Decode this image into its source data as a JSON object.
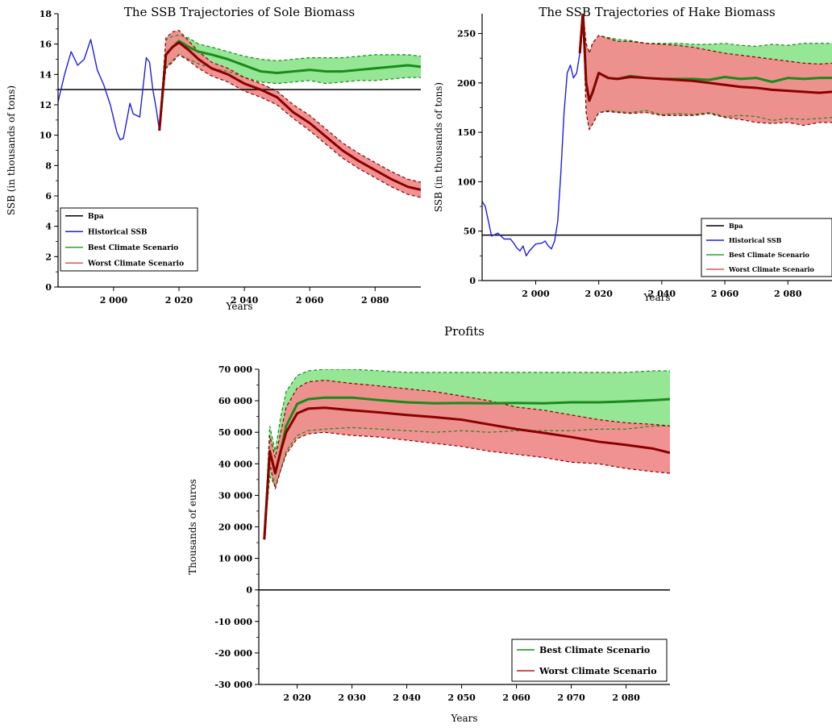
{
  "chart_data": [
    {
      "id": "sole",
      "type": "line",
      "title": "The SSB Trajectories of Sole Biomass",
      "xlabel": "Years",
      "ylabel": "SSB (in thousands of tons)",
      "xlim": [
        1983,
        2094
      ],
      "ylim": [
        0,
        18
      ],
      "xticks": [
        2000,
        2020,
        2040,
        2060,
        2080
      ],
      "xtick_labels": [
        "2 000",
        "2 020",
        "2 040",
        "2 060",
        "2 080"
      ],
      "yticks": [
        0,
        2,
        4,
        6,
        8,
        10,
        12,
        14,
        16,
        18
      ],
      "ytick_labels": [
        "0",
        "2",
        "4",
        "6",
        "8",
        "10",
        "12",
        "14",
        "16",
        "18"
      ],
      "legend": [
        "Bpa",
        "Historical SSB",
        "Best Climate Scenario",
        "Worst Climate Scenario"
      ],
      "legend_position": "bottom-left",
      "bpa": 13,
      "series": [
        {
          "name": "Historical SSB",
          "color": "#1f1fe6",
          "width": 1.4,
          "x": [
            1983,
            1985,
            1987,
            1989,
            1991,
            1993,
            1995,
            1997,
            1999,
            2001,
            2002,
            2003,
            2005,
            2006,
            2008,
            2010,
            2011,
            2012,
            2013,
            2014
          ],
          "y": [
            12.2,
            14.0,
            15.5,
            14.6,
            15.0,
            16.3,
            14.3,
            13.3,
            12.0,
            10.2,
            9.7,
            9.8,
            12.1,
            11.4,
            11.2,
            15.1,
            14.8,
            13.0,
            11.8,
            10.3
          ]
        },
        {
          "name": "Best Climate Scenario",
          "color": "#1a8a1a",
          "width": 3,
          "x": [
            2014,
            2016,
            2018,
            2020,
            2023,
            2026,
            2030,
            2035,
            2040,
            2045,
            2050,
            2055,
            2060,
            2065,
            2070,
            2075,
            2080,
            2085,
            2090,
            2094
          ],
          "y": [
            10.3,
            15.3,
            15.8,
            16.2,
            15.8,
            15.5,
            15.3,
            15.0,
            14.6,
            14.2,
            14.1,
            14.2,
            14.3,
            14.2,
            14.2,
            14.3,
            14.4,
            14.5,
            14.6,
            14.5
          ],
          "upper": [
            10.3,
            16.3,
            16.5,
            16.6,
            16.4,
            16.0,
            15.8,
            15.5,
            15.2,
            15.0,
            14.9,
            15.0,
            15.1,
            15.1,
            15.1,
            15.2,
            15.3,
            15.3,
            15.3,
            15.2
          ],
          "lower": [
            10.3,
            14.5,
            14.9,
            15.3,
            15.0,
            14.7,
            14.4,
            14.2,
            13.8,
            13.5,
            13.4,
            13.5,
            13.6,
            13.4,
            13.5,
            13.6,
            13.6,
            13.7,
            13.8,
            13.8
          ],
          "band": "#8fe58f"
        },
        {
          "name": "Worst Climate Scenario",
          "color": "#8b0000",
          "width": 3,
          "x": [
            2014,
            2016,
            2018,
            2020,
            2023,
            2026,
            2030,
            2035,
            2040,
            2045,
            2050,
            2055,
            2060,
            2065,
            2070,
            2075,
            2080,
            2085,
            2090,
            2094
          ],
          "y": [
            10.3,
            15.3,
            15.8,
            16.1,
            15.6,
            15.0,
            14.4,
            14.0,
            13.4,
            13.0,
            12.5,
            11.5,
            10.8,
            9.9,
            9.0,
            8.3,
            7.7,
            7.1,
            6.6,
            6.4
          ],
          "upper": [
            10.3,
            16.4,
            16.8,
            16.9,
            16.2,
            15.5,
            14.8,
            14.4,
            13.8,
            13.4,
            12.9,
            12.0,
            11.3,
            10.4,
            9.5,
            8.8,
            8.2,
            7.6,
            7.1,
            6.9
          ],
          "lower": [
            10.3,
            14.4,
            14.8,
            15.3,
            14.9,
            14.4,
            13.9,
            13.5,
            12.9,
            12.5,
            12.0,
            11.1,
            10.3,
            9.4,
            8.5,
            7.8,
            7.2,
            6.6,
            6.1,
            5.9
          ],
          "band": "#f08c8c"
        }
      ]
    },
    {
      "id": "hake",
      "type": "line",
      "title": "The SSB Trajectories of Hake Biomass",
      "xlabel": "Years",
      "ylabel": "SSB (in thousands of tons)",
      "xlim": [
        1983,
        2094
      ],
      "ylim": [
        0,
        270
      ],
      "xticks": [
        2000,
        2020,
        2040,
        2060,
        2080
      ],
      "xtick_labels": [
        "2 000",
        "2 020",
        "2 040",
        "2 060",
        "2 080"
      ],
      "yticks": [
        0,
        50,
        100,
        150,
        200,
        250
      ],
      "ytick_labels": [
        "0",
        "50",
        "100",
        "150",
        "200",
        "250"
      ],
      "legend": [
        "Bpa",
        "Historical SSB",
        "Best Climate Scenario",
        "Worst Climate Scenario"
      ],
      "legend_position": "bottom-right",
      "bpa": 46,
      "series": [
        {
          "name": "Historical SSB",
          "color": "#1f1fe6",
          "width": 1.4,
          "x": [
            1983,
            1984,
            1985,
            1986,
            1988,
            1990,
            1992,
            1993,
            1994,
            1995,
            1996,
            1997,
            1998,
            2000,
            2002,
            2003,
            2004,
            2005,
            2006,
            2007,
            2008,
            2009,
            2010,
            2011,
            2012,
            2013,
            2014
          ],
          "y": [
            80,
            75,
            60,
            45,
            48,
            42,
            42,
            38,
            33,
            30,
            35,
            25,
            30,
            37,
            38,
            40,
            35,
            32,
            40,
            60,
            110,
            170,
            210,
            218,
            205,
            210,
            230
          ]
        },
        {
          "name": "Best Climate Scenario",
          "color": "#1a8a1a",
          "width": 3,
          "x": [
            2014,
            2015,
            2016,
            2017,
            2018,
            2020,
            2023,
            2026,
            2030,
            2035,
            2040,
            2045,
            2050,
            2055,
            2060,
            2065,
            2070,
            2075,
            2080,
            2085,
            2090,
            2094
          ],
          "y": [
            230,
            272,
            200,
            182,
            190,
            210,
            205,
            204,
            207,
            205,
            204,
            204,
            204,
            203,
            206,
            204,
            205,
            201,
            205,
            204,
            205,
            205
          ],
          "upper": [
            230,
            272,
            240,
            230,
            240,
            248,
            246,
            244,
            243,
            240,
            240,
            240,
            239,
            239,
            240,
            238,
            237,
            239,
            238,
            240,
            240,
            240
          ],
          "lower": [
            230,
            272,
            170,
            153,
            158,
            170,
            172,
            171,
            170,
            172,
            168,
            169,
            168,
            170,
            166,
            167,
            166,
            162,
            164,
            163,
            164,
            165
          ],
          "band": "#8fe58f"
        },
        {
          "name": "Worst Climate Scenario",
          "color": "#8b0000",
          "width": 3,
          "x": [
            2014,
            2015,
            2016,
            2017,
            2018,
            2020,
            2023,
            2026,
            2030,
            2035,
            2040,
            2045,
            2050,
            2055,
            2060,
            2065,
            2070,
            2075,
            2080,
            2085,
            2090,
            2094
          ],
          "y": [
            230,
            272,
            200,
            182,
            190,
            210,
            205,
            204,
            206,
            205,
            204,
            203,
            202,
            200,
            198,
            196,
            195,
            193,
            192,
            191,
            190,
            191
          ],
          "upper": [
            230,
            272,
            240,
            230,
            240,
            248,
            245,
            242,
            242,
            240,
            239,
            238,
            236,
            233,
            230,
            228,
            226,
            224,
            222,
            220,
            219,
            220
          ],
          "lower": [
            230,
            272,
            170,
            153,
            158,
            170,
            171,
            170,
            169,
            170,
            167,
            167,
            167,
            169,
            165,
            163,
            160,
            159,
            160,
            157,
            160,
            160
          ],
          "band": "#f08c8c"
        }
      ]
    },
    {
      "id": "profits",
      "type": "line",
      "title": "Profits",
      "xlabel": "Years",
      "ylabel": "Thousands of euros",
      "xlim": [
        2013,
        2088
      ],
      "ylim": [
        -30000,
        70000
      ],
      "xticks": [
        2020,
        2030,
        2040,
        2050,
        2060,
        2070,
        2080
      ],
      "xtick_labels": [
        "2 020",
        "2 030",
        "2 040",
        "2 050",
        "2 060",
        "2 070",
        "2 080"
      ],
      "yticks": [
        -30000,
        -20000,
        -10000,
        0,
        10000,
        20000,
        30000,
        40000,
        50000,
        60000,
        70000
      ],
      "ytick_labels": [
        "-30 000",
        "-20 000",
        "-10 000",
        "0",
        "10 000",
        "20 000",
        "30 000",
        "40 000",
        "50 000",
        "60 000",
        "70 000"
      ],
      "legend": [
        "Best Climate Scenario",
        "Worst Climate Scenario"
      ],
      "legend_position": "bottom-right",
      "zero_line": 0,
      "series": [
        {
          "name": "Best Climate Scenario",
          "color": "#1a8a1a",
          "width": 3,
          "x": [
            2014,
            2015,
            2016,
            2017,
            2018,
            2020,
            2022,
            2025,
            2030,
            2035,
            2040,
            2045,
            2050,
            2055,
            2060,
            2065,
            2070,
            2075,
            2080,
            2085,
            2088
          ],
          "y": [
            16000,
            44000,
            37000,
            44000,
            52000,
            59000,
            60500,
            61000,
            61000,
            60200,
            59500,
            59200,
            59300,
            59200,
            59300,
            59200,
            59500,
            59500,
            59800,
            60200,
            60500
          ],
          "upper": [
            16000,
            52000,
            44000,
            55000,
            63000,
            68000,
            69500,
            70000,
            70000,
            69500,
            69000,
            69000,
            69000,
            69000,
            69000,
            69000,
            69000,
            69000,
            69000,
            69500,
            69500
          ],
          "lower": [
            16000,
            36000,
            33000,
            38000,
            44000,
            49000,
            50500,
            51000,
            51500,
            51000,
            50500,
            50000,
            50500,
            50000,
            50500,
            50500,
            50500,
            51000,
            51000,
            52000,
            52000
          ],
          "band": "#8fe58f"
        },
        {
          "name": "Worst Climate Scenario",
          "color": "#8b0000",
          "width": 3,
          "x": [
            2014,
            2015,
            2016,
            2017,
            2018,
            2020,
            2022,
            2025,
            2030,
            2035,
            2040,
            2045,
            2050,
            2055,
            2060,
            2065,
            2070,
            2075,
            2080,
            2085,
            2088
          ],
          "y": [
            16000,
            44000,
            37000,
            44000,
            50000,
            56000,
            57500,
            57800,
            57000,
            56300,
            55500,
            54800,
            54000,
            52500,
            51000,
            49800,
            48500,
            47000,
            46000,
            44800,
            43500
          ],
          "upper": [
            16000,
            49000,
            42000,
            50000,
            58000,
            64000,
            66000,
            66500,
            65500,
            64700,
            63800,
            62900,
            61500,
            60000,
            58000,
            57000,
            55500,
            54000,
            53000,
            52500,
            52000
          ],
          "lower": [
            16000,
            40000,
            32000,
            38000,
            43000,
            48000,
            49500,
            50000,
            49000,
            48500,
            47500,
            46500,
            45500,
            44000,
            43000,
            42000,
            40500,
            40000,
            38500,
            37500,
            37000
          ],
          "band": "#f08c8c"
        }
      ]
    }
  ],
  "bpa_color": "#000000"
}
